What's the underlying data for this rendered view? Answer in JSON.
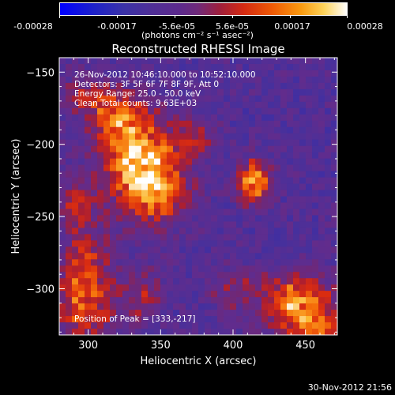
{
  "colorbar": {
    "tick_labels": [
      "-0.00028",
      "-0.00017",
      "-5.6e-05",
      "5.6e-05",
      "0.00017",
      "0.00028"
    ],
    "units_label": "(photons cm⁻² s⁻¹ asec⁻²)"
  },
  "annotations": {
    "time_range": "26-Nov-2012 10:46:10.000 to 10:52:10.000",
    "detectors": "Detectors: 3F 5F 6F 7F 8F 9F, Att 0",
    "energy_range": "Energy Range: 25.0 - 50.0 keV",
    "clean_counts": "Clean     Total counts: 9.63E+03",
    "peak": "Position of Peak = [333,-217]"
  },
  "footer": {
    "timestamp": "30-Nov-2012 21:56"
  },
  "chart_data": {
    "type": "heatmap",
    "title": "Reconstructed RHESSI Image",
    "xlabel": "Heliocentric X (arcsec)",
    "ylabel": "Heliocentric Y (arcsec)",
    "xlim": [
      280,
      472
    ],
    "ylim": [
      -332,
      -140
    ],
    "x_ticks": [
      300,
      350,
      400,
      450
    ],
    "y_ticks": [
      -150,
      -200,
      -250,
      -300
    ],
    "x_tick_labels": [
      "300",
      "350",
      "400",
      "450"
    ],
    "y_tick_labels": [
      "−150",
      "−200",
      "−250",
      "−300"
    ],
    "color_range": [
      -0.00028,
      0.00028
    ],
    "peak": [
      333,
      -217
    ],
    "sources": [
      {
        "x": 335,
        "y": -212,
        "amp": 1.0,
        "sx": 18,
        "sy": 22
      },
      {
        "x": 318,
        "y": -178,
        "amp": 0.55,
        "sx": 14,
        "sy": 12
      },
      {
        "x": 352,
        "y": -235,
        "amp": 0.5,
        "sx": 14,
        "sy": 14
      },
      {
        "x": 415,
        "y": -226,
        "amp": 0.95,
        "sx": 8,
        "sy": 10
      },
      {
        "x": 298,
        "y": -300,
        "amp": 0.75,
        "sx": 14,
        "sy": 28
      },
      {
        "x": 290,
        "y": -240,
        "amp": 0.5,
        "sx": 8,
        "sy": 10
      },
      {
        "x": 445,
        "y": -310,
        "amp": 0.85,
        "sx": 18,
        "sy": 14
      },
      {
        "x": 460,
        "y": -330,
        "amp": 0.6,
        "sx": 12,
        "sy": 8
      },
      {
        "x": 375,
        "y": -195,
        "amp": 0.4,
        "sx": 10,
        "sy": 10
      },
      {
        "x": 338,
        "y": -305,
        "amp": 0.35,
        "sx": 10,
        "sy": 14
      },
      {
        "x": 295,
        "y": -165,
        "amp": 0.35,
        "sx": 10,
        "sy": 10
      },
      {
        "x": 400,
        "y": -300,
        "amp": 0.3,
        "sx": 12,
        "sy": 10
      }
    ],
    "background_level": -0.15,
    "noise_level": 0.18
  }
}
